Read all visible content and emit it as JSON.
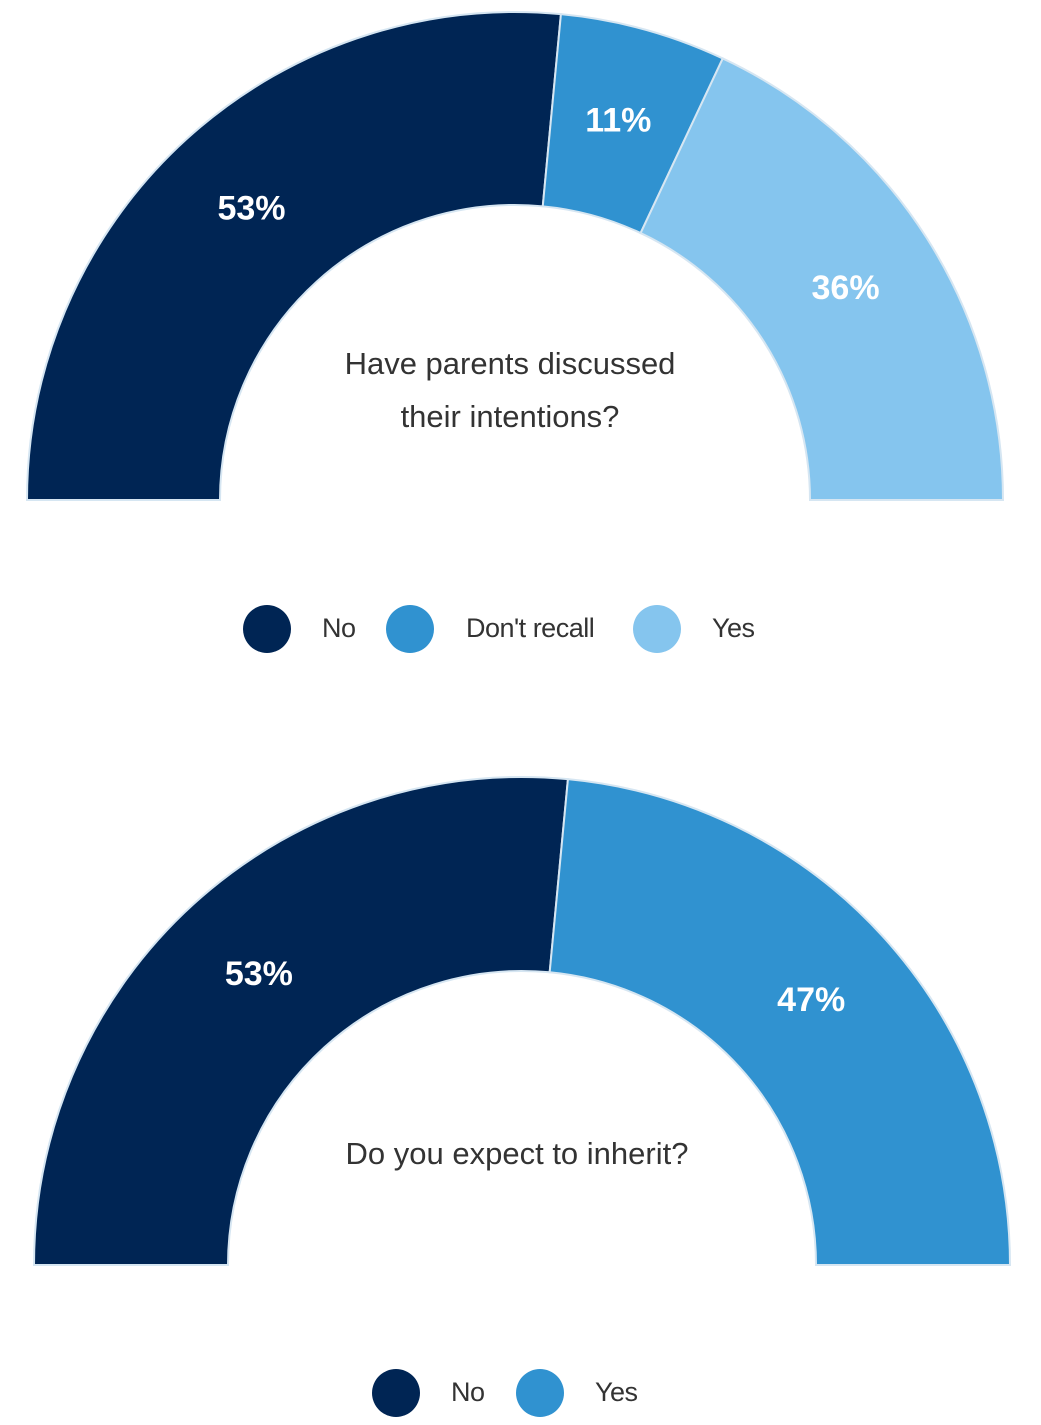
{
  "chart_data": [
    {
      "type": "pie",
      "variant": "semicircle-donut",
      "title": [
        "Have parents discussed",
        "their intentions?"
      ],
      "categories": [
        "No",
        "Don't recall",
        "Yes"
      ],
      "values": [
        53,
        11,
        36
      ],
      "data_labels": [
        "53%",
        "11%",
        "36%"
      ],
      "colors": [
        "#002554",
        "#3092D0",
        "#85C5EE"
      ],
      "legend_position": "bottom"
    },
    {
      "type": "pie",
      "variant": "semicircle-donut",
      "title": [
        "Do you expect to inherit?"
      ],
      "categories": [
        "No",
        "Yes"
      ],
      "values": [
        53,
        47
      ],
      "data_labels": [
        "53%",
        "47%"
      ],
      "colors": [
        "#002554",
        "#3092D0"
      ],
      "legend_position": "bottom"
    }
  ]
}
